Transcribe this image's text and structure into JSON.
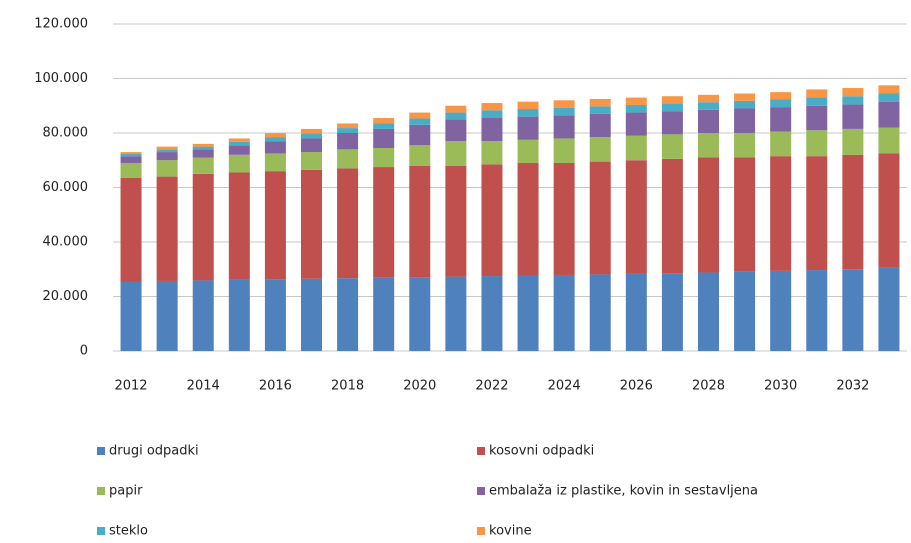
{
  "chart_data": {
    "type": "stacked_bar",
    "categories": [
      "2012",
      null,
      "2014",
      null,
      "2016",
      null,
      "2018",
      null,
      "2020",
      null,
      "2022",
      null,
      "2024",
      null,
      "2026",
      null,
      "2028",
      null,
      "2030",
      null,
      "2032",
      null
    ],
    "series": [
      {
        "name": "drugi odpadki",
        "color": "#4f81bd",
        "values": [
          25500,
          25700,
          25900,
          26100,
          26300,
          26500,
          26700,
          26900,
          27100,
          27300,
          27500,
          27700,
          27900,
          28100,
          28300,
          28500,
          28800,
          29100,
          29400,
          29700,
          30000,
          30500
        ]
      },
      {
        "name": "kosovni odpadki",
        "color": "#c0504d",
        "values": [
          38000,
          38300,
          39100,
          39400,
          39700,
          40000,
          40300,
          40600,
          40900,
          40700,
          41000,
          41300,
          41100,
          41400,
          41700,
          42000,
          42200,
          41900,
          42100,
          41800,
          42000,
          42000
        ]
      },
      {
        "name": "papir",
        "color": "#9bbb59",
        "values": [
          5500,
          6000,
          6000,
          6500,
          6500,
          6500,
          7000,
          7000,
          7500,
          9000,
          8500,
          8500,
          9000,
          9000,
          9000,
          9000,
          9000,
          9000,
          9000,
          9500,
          9500,
          9500
        ]
      },
      {
        "name": "embalaža iz plastike, kovin in sestavljena",
        "color": "#8064a2",
        "values": [
          2500,
          3000,
          3000,
          3500,
          4500,
          5000,
          6000,
          7000,
          7500,
          8000,
          8500,
          8500,
          8500,
          8500,
          8500,
          8500,
          8500,
          9000,
          9000,
          9000,
          9000,
          9500
        ]
      },
      {
        "name": "steklo",
        "color": "#4bacc6",
        "values": [
          800,
          1000,
          1000,
          1300,
          1500,
          1800,
          1800,
          2000,
          2300,
          2500,
          2800,
          2800,
          2800,
          2800,
          2800,
          2800,
          2800,
          2800,
          2800,
          3000,
          3000,
          3000
        ]
      },
      {
        "name": "kovine",
        "color": "#f79646",
        "values": [
          700,
          1000,
          1000,
          1200,
          1500,
          1700,
          1700,
          2000,
          2200,
          2500,
          2700,
          2700,
          2700,
          2700,
          2700,
          2700,
          2700,
          2700,
          2700,
          3000,
          3000,
          3000
        ]
      }
    ],
    "ylim": [
      0,
      120000
    ],
    "yticks": [
      0,
      {
        "value": 20000,
        "label": "20.000"
      },
      {
        "value": 40000,
        "label": "40.000"
      },
      {
        "value": 60000,
        "label": "60.000"
      },
      {
        "value": 80000,
        "label": "80.000"
      },
      {
        "value": 100000,
        "label": "100.000"
      },
      {
        "value": 120000,
        "label": "120.000"
      }
    ],
    "grid": true,
    "legend": "bottom"
  }
}
